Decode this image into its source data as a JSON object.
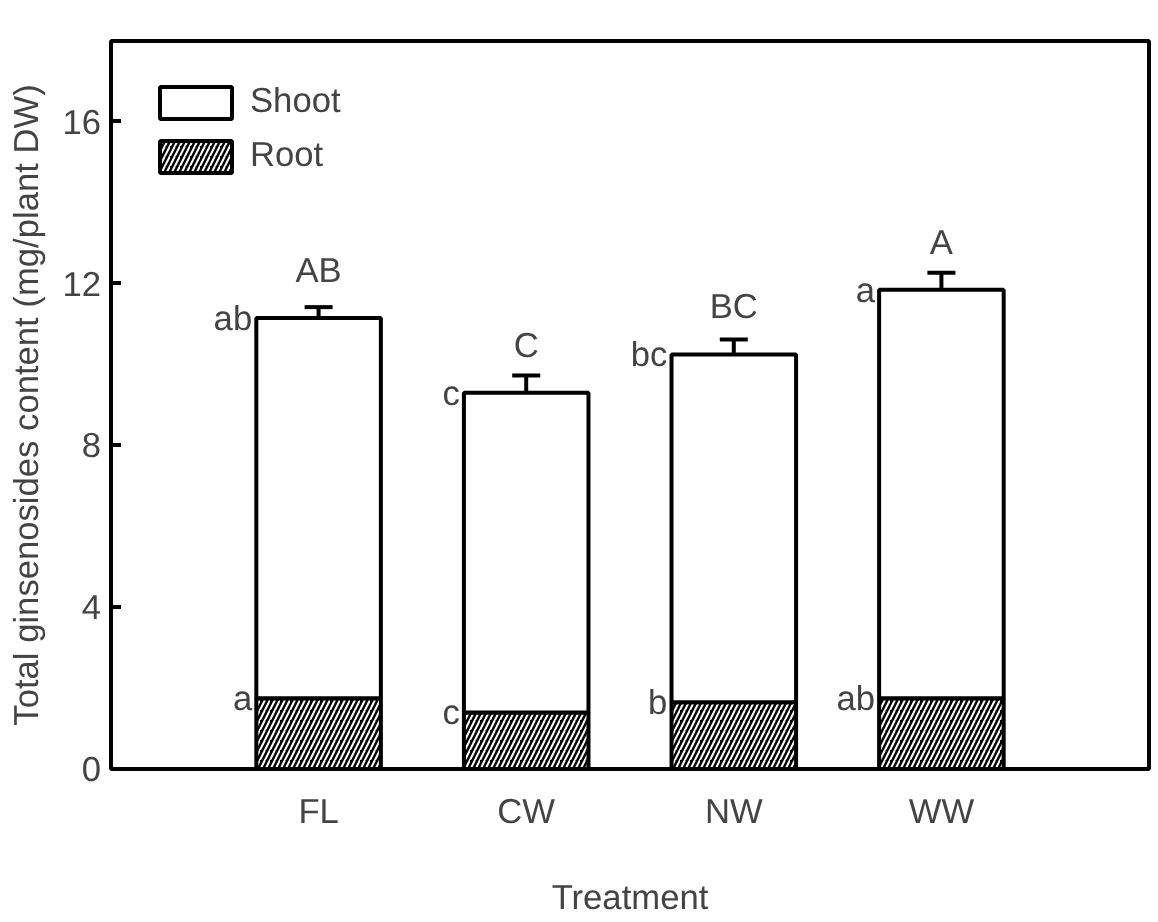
{
  "chart_data": {
    "type": "bar",
    "stacked": true,
    "xlabel": "Treatment",
    "ylabel": "Total ginsenosides content (mg/plant DW)",
    "categories": [
      "FL",
      "CW",
      "NW",
      "WW"
    ],
    "series": [
      {
        "name": "Root",
        "color": "#000000",
        "values": [
          1.75,
          1.4,
          1.65,
          1.75
        ],
        "errors": [
          0.05,
          0.05,
          0.05,
          0.05
        ]
      },
      {
        "name": "Shoot",
        "color": "#ffffff",
        "values": [
          9.4,
          7.9,
          8.6,
          10.1
        ],
        "errors": [
          0.27,
          0.43,
          0.37,
          0.42
        ]
      }
    ],
    "ylim": [
      0,
      18
    ],
    "yticks": [
      0,
      4,
      8,
      12,
      16
    ],
    "grid": false,
    "legend": "top left",
    "annotations": [
      {
        "text": "AB",
        "x": "FL",
        "y": 11.15
      },
      {
        "text": "C",
        "x": "CW",
        "y": 9.3
      },
      {
        "text": "BC",
        "x": "NW",
        "y": 10.25
      },
      {
        "text": "A",
        "x": "WW",
        "y": 11.85
      },
      {
        "text": "ab",
        "x": "FL",
        "y": 11.15
      },
      {
        "text": "c",
        "x": "CW",
        "y": 9.3
      },
      {
        "text": "bc",
        "x": "NW",
        "y": 10.25
      },
      {
        "text": "a",
        "x": "WW",
        "y": 11.85
      },
      {
        "text": "a",
        "x": "FL",
        "y": 1.75
      },
      {
        "text": "c",
        "x": "CW",
        "y": 1.4
      },
      {
        "text": "b",
        "x": "NW",
        "y": 1.65
      },
      {
        "text": "ab",
        "x": "WW",
        "y": 1.75
      }
    ]
  }
}
